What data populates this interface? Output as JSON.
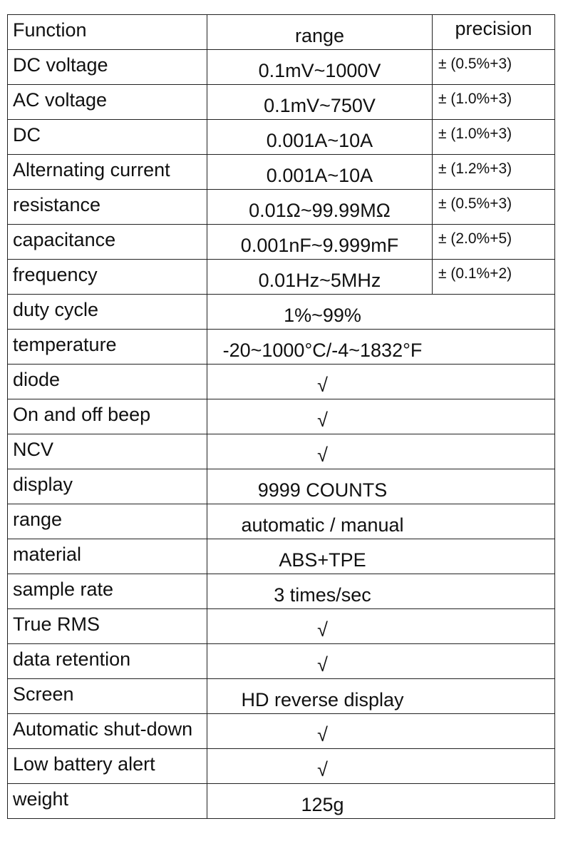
{
  "table": {
    "header": [
      "Function",
      "range",
      "precision"
    ],
    "rows": [
      [
        "DC voltage",
        "0.1mV~1000V",
        "± (0.5%+3)"
      ],
      [
        "AC voltage",
        "0.1mV~750V",
        "± (1.0%+3)"
      ],
      [
        "DC",
        "0.001A~10A",
        "± (1.0%+3)"
      ],
      [
        "Alternating current",
        "0.001A~10A",
        "± (1.2%+3)"
      ],
      [
        "resistance",
        "0.01Ω~99.99MΩ",
        "± (0.5%+3)"
      ],
      [
        "capacitance",
        "0.001nF~9.999mF",
        "± (2.0%+5)"
      ],
      [
        "frequency",
        "0.01Hz~5MHz",
        "± (0.1%+2)"
      ],
      [
        "duty cycle",
        "1%~99%"
      ],
      [
        "temperature",
        "-20~1000°C/-4~1832°F"
      ],
      [
        "diode",
        "√"
      ],
      [
        "On and off beep",
        "√"
      ],
      [
        "NCV",
        "√"
      ],
      [
        "display",
        "9999 COUNTS"
      ],
      [
        "range",
        "automatic / manual"
      ],
      [
        "material",
        "ABS+TPE"
      ],
      [
        "sample rate",
        "3 times/sec"
      ],
      [
        "True RMS",
        "√"
      ],
      [
        "data retention",
        "√"
      ],
      [
        "Screen",
        "HD reverse display"
      ],
      [
        "Automatic shut-down",
        "√"
      ],
      [
        "Low battery alert",
        "√"
      ],
      [
        "weight",
        "125g"
      ]
    ]
  }
}
